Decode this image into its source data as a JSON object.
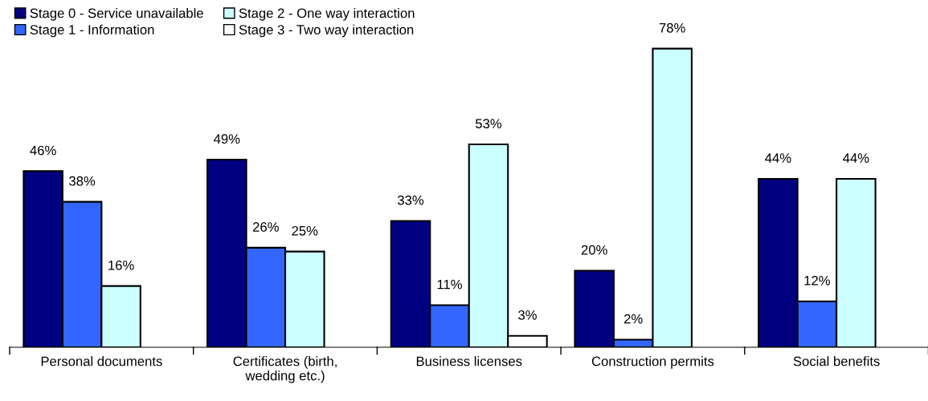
{
  "chart_data": {
    "type": "bar",
    "categories": [
      "Personal documents",
      "Certificates (birth,\nwedding etc.)",
      "Business licenses",
      "Construction permits",
      "Social benefits"
    ],
    "series": [
      {
        "name": "Stage 0 - Service unavailable",
        "color": "#000080",
        "values": [
          46,
          49,
          33,
          20,
          44
        ],
        "value_labels": [
          "46%",
          "49%",
          "33%",
          "20%",
          "44%"
        ]
      },
      {
        "name": "Stage 1 - Information",
        "color": "#3366ff",
        "values": [
          38,
          26,
          11,
          2,
          12
        ],
        "value_labels": [
          "38%",
          "26%",
          "11%",
          "2%",
          "12%"
        ]
      },
      {
        "name": "Stage 2 - One way interaction",
        "color": "#ccffff",
        "values": [
          16,
          25,
          53,
          78,
          44
        ],
        "value_labels": [
          "16%",
          "25%",
          "53%",
          "78%",
          "44%"
        ]
      },
      {
        "name": "Stage 3 - Two way interaction",
        "color": "#ffffff",
        "values": [
          null,
          null,
          3,
          null,
          null
        ],
        "value_labels": [
          null,
          null,
          "3%",
          null,
          null
        ]
      }
    ],
    "legend": "top left",
    "grid": false
  }
}
